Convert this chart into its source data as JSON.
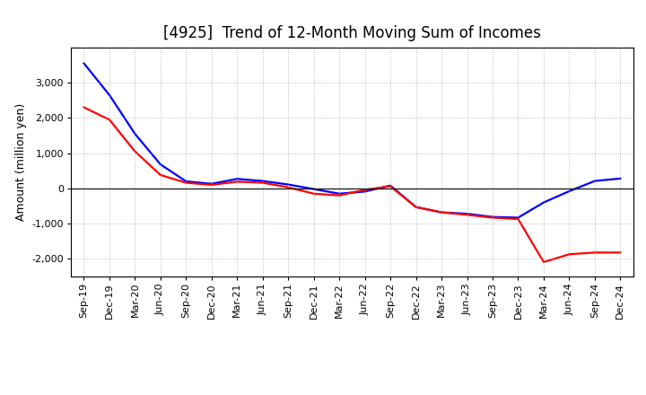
{
  "title": "[4925]  Trend of 12-Month Moving Sum of Incomes",
  "ylabel": "Amount (million yen)",
  "x_labels": [
    "Sep-19",
    "Dec-19",
    "Mar-20",
    "Jun-20",
    "Sep-20",
    "Dec-20",
    "Mar-21",
    "Jun-21",
    "Sep-21",
    "Dec-21",
    "Mar-22",
    "Jun-22",
    "Sep-22",
    "Dec-22",
    "Mar-23",
    "Jun-23",
    "Sep-23",
    "Dec-23",
    "Mar-24",
    "Jun-24",
    "Sep-24",
    "Dec-24"
  ],
  "ordinary_income": [
    3550,
    2650,
    1550,
    680,
    200,
    130,
    270,
    210,
    110,
    -20,
    -150,
    -90,
    80,
    -530,
    -680,
    -720,
    -810,
    -830,
    -400,
    -80,
    210,
    280
  ],
  "net_income": [
    2300,
    1950,
    1050,
    380,
    160,
    100,
    190,
    160,
    30,
    -150,
    -200,
    -40,
    60,
    -530,
    -680,
    -750,
    -830,
    -870,
    -2090,
    -1870,
    -1820,
    -1820
  ],
  "ordinary_color": "#0000FF",
  "net_color": "#FF0000",
  "background_color": "#FFFFFF",
  "grid_color": "#AAAAAA",
  "ylim": [
    -2500,
    4000
  ],
  "yticks": [
    -2000,
    -1000,
    0,
    1000,
    2000,
    3000
  ],
  "line_width": 1.6,
  "title_fontsize": 12,
  "axis_fontsize": 9,
  "tick_fontsize": 8
}
